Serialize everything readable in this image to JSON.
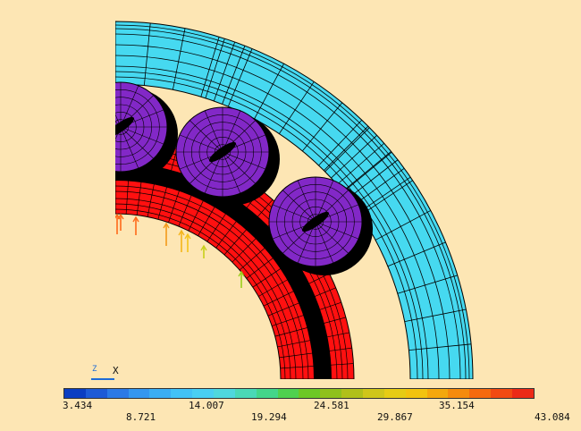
{
  "legend": {
    "ticks_top": [
      "3.434",
      "14.007",
      "24.581",
      "35.154"
    ],
    "ticks_bottom": [
      "8.721",
      "19.294",
      "29.867",
      "43.084"
    ],
    "colors": [
      "#0a3ec2",
      "#1d5bd6",
      "#2b7ae6",
      "#3497ef",
      "#3aaef3",
      "#41c2f6",
      "#49cff2",
      "#4fd8dd",
      "#4ad9b6",
      "#43d68a",
      "#4fd14f",
      "#6cc826",
      "#8fc11c",
      "#b0c01a",
      "#cfc61a",
      "#e6cc14",
      "#f2c30f",
      "#f4a80d",
      "#f58b0d",
      "#f46a0f",
      "#f24a12",
      "#ec2a17"
    ]
  },
  "triad": {
    "z_label": "Z",
    "x_label": "X"
  },
  "model": {
    "outer_ring_color": "#46d9f0",
    "inner_ring_color": "#ff1010",
    "roller_color": "#8228c7"
  }
}
